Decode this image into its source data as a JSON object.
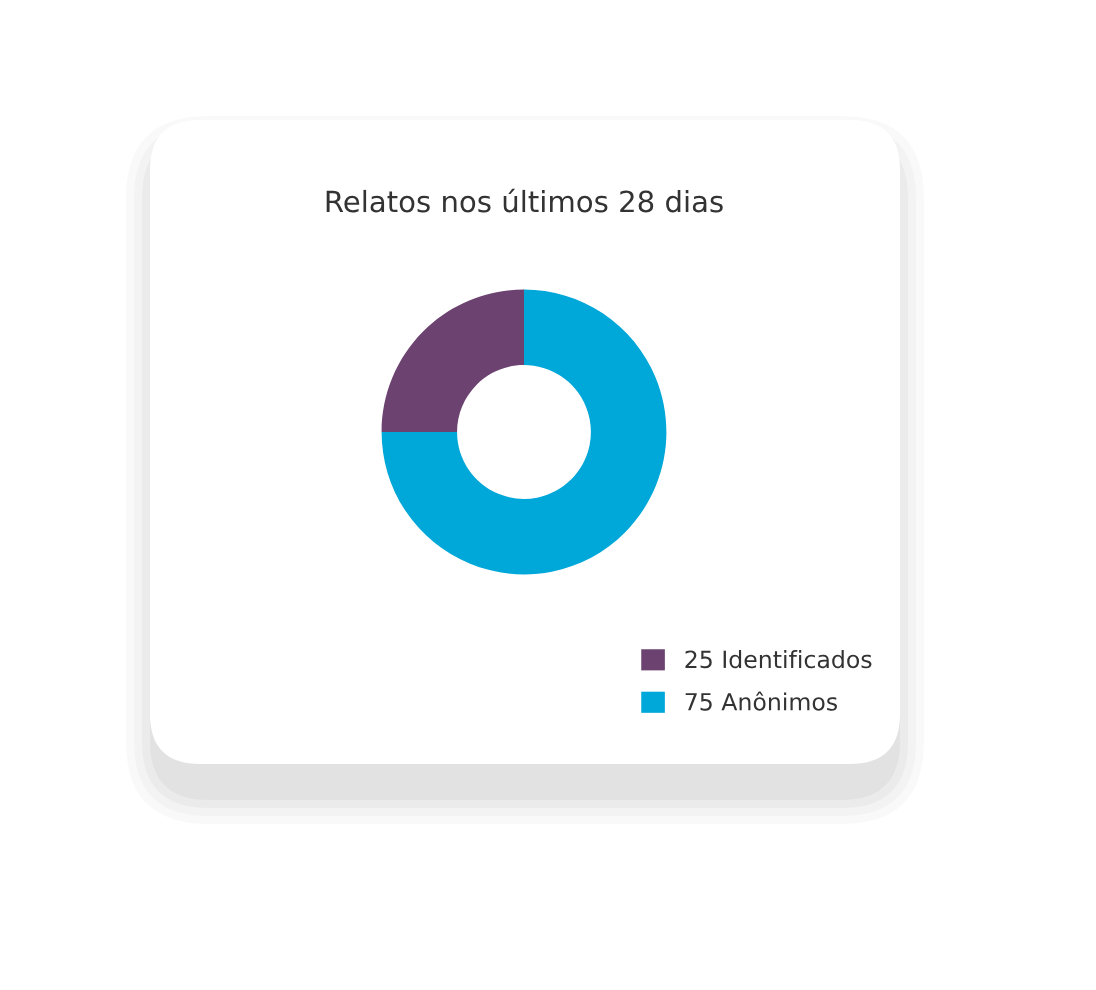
{
  "chart_data": {
    "type": "donut",
    "title": "Relatos nos últimos 28 dias",
    "categories": [
      "25 Identificados",
      "75 Anônimos"
    ],
    "values": [
      25,
      75
    ],
    "colors": [
      "#6b4270",
      "#00a7d9"
    ],
    "legend": "bottom right"
  }
}
